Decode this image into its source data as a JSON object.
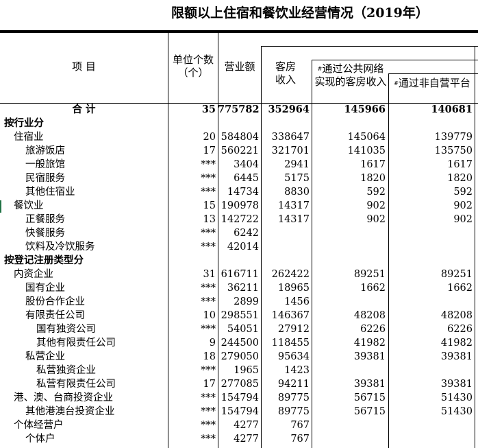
{
  "title": "限额以上住宿和餐饮业经营情况（2019年）",
  "headers": {
    "item": "项 目",
    "units": "单位个数（个）",
    "revenue": "营业额",
    "room": "客房收入",
    "online_mark": "#",
    "online": "通过公共网络实现的客房收入",
    "nonself_mark": "#",
    "nonself": "通过非自营平台"
  },
  "rows": [
    {
      "label": "合 计",
      "level": 0,
      "bold": true,
      "center": true,
      "units": "35",
      "revenue": "775782",
      "room": "352964",
      "online": "145966",
      "nonself": "140681"
    },
    {
      "label": "按行业分",
      "level": 0,
      "bold": true,
      "units": "",
      "revenue": "",
      "room": "",
      "online": "",
      "nonself": ""
    },
    {
      "label": "住宿业",
      "level": 1,
      "units": "20",
      "revenue": "584804",
      "room": "338647",
      "online": "145064",
      "nonself": "139779"
    },
    {
      "label": "旅游饭店",
      "level": 2,
      "units": "17",
      "revenue": "560221",
      "room": "321701",
      "online": "141035",
      "nonself": "135750"
    },
    {
      "label": "一般旅馆",
      "level": 2,
      "units": "***",
      "revenue": "3404",
      "room": "2941",
      "online": "1617",
      "nonself": "1617"
    },
    {
      "label": "民宿服务",
      "level": 2,
      "units": "***",
      "revenue": "6445",
      "room": "5175",
      "online": "1820",
      "nonself": "1820"
    },
    {
      "label": "其他住宿业",
      "level": 2,
      "units": "***",
      "revenue": "14734",
      "room": "8830",
      "online": "592",
      "nonself": "592"
    },
    {
      "label": "餐饮业",
      "level": 1,
      "units": "15",
      "revenue": "190978",
      "room": "14317",
      "online": "902",
      "nonself": "902"
    },
    {
      "label": "正餐服务",
      "level": 2,
      "units": "13",
      "revenue": "142722",
      "room": "14317",
      "online": "902",
      "nonself": "902"
    },
    {
      "label": "快餐服务",
      "level": 2,
      "units": "***",
      "revenue": "6242",
      "room": "",
      "online": "",
      "nonself": ""
    },
    {
      "label": "饮料及冷饮服务",
      "level": 2,
      "units": "***",
      "revenue": "42014",
      "room": "",
      "online": "",
      "nonself": ""
    },
    {
      "label": "按登记注册类型分",
      "level": 0,
      "bold": true,
      "units": "",
      "revenue": "",
      "room": "",
      "online": "",
      "nonself": ""
    },
    {
      "label": "内资企业",
      "level": 1,
      "units": "31",
      "revenue": "616711",
      "room": "262422",
      "online": "89251",
      "nonself": "89251"
    },
    {
      "label": "国有企业",
      "level": 2,
      "units": "***",
      "revenue": "36211",
      "room": "18965",
      "online": "1662",
      "nonself": "1662"
    },
    {
      "label": "股份合作企业",
      "level": 2,
      "units": "***",
      "revenue": "2899",
      "room": "1456",
      "online": "",
      "nonself": ""
    },
    {
      "label": "有限责任公司",
      "level": 2,
      "units": "10",
      "revenue": "298551",
      "room": "146367",
      "online": "48208",
      "nonself": "48208"
    },
    {
      "label": "国有独资公司",
      "level": 3,
      "units": "***",
      "revenue": "54051",
      "room": "27912",
      "online": "6226",
      "nonself": "6226"
    },
    {
      "label": "其他有限责任公司",
      "level": 3,
      "units": "9",
      "revenue": "244500",
      "room": "118455",
      "online": "41982",
      "nonself": "41982"
    },
    {
      "label": "私营企业",
      "level": 2,
      "units": "18",
      "revenue": "279050",
      "room": "95634",
      "online": "39381",
      "nonself": "39381"
    },
    {
      "label": "私营独资企业",
      "level": 3,
      "units": "***",
      "revenue": "1965",
      "room": "1423",
      "online": "",
      "nonself": ""
    },
    {
      "label": "私营有限责任公司",
      "level": 3,
      "units": "17",
      "revenue": "277085",
      "room": "94211",
      "online": "39381",
      "nonself": "39381"
    },
    {
      "label": "港、澳、台商投资企业",
      "level": 1,
      "units": "***",
      "revenue": "154794",
      "room": "89775",
      "online": "56715",
      "nonself": "51430"
    },
    {
      "label": "其他港澳台投资企业",
      "level": 2,
      "units": "***",
      "revenue": "154794",
      "room": "89775",
      "online": "56715",
      "nonself": "51430"
    },
    {
      "label": "个体经营户",
      "level": 1,
      "units": "***",
      "revenue": "4277",
      "room": "767",
      "online": "",
      "nonself": ""
    },
    {
      "label": "个体户",
      "level": 2,
      "units": "***",
      "revenue": "4277",
      "room": "767",
      "online": "",
      "nonself": ""
    }
  ]
}
